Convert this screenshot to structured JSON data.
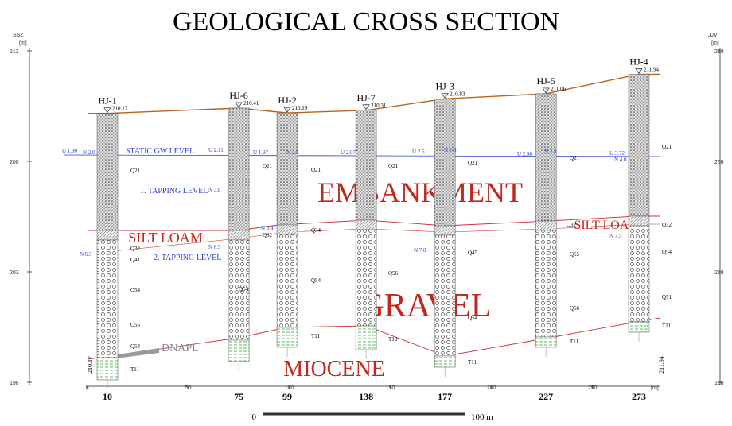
{
  "title": "GEOLOGICAL CROSS SECTION",
  "left_axis": {
    "name": "SSZ",
    "unit": "[m]",
    "ticks": [
      213,
      208,
      203,
      198
    ]
  },
  "right_axis": {
    "name": "JJV",
    "unit": "[m]",
    "ticks": [
      213,
      208,
      203,
      198
    ]
  },
  "boreholes": [
    {
      "name": "HJ-1",
      "elevation": 210.17,
      "distance": 10
    },
    {
      "name": "HJ-6",
      "elevation": 210.41,
      "distance": 75
    },
    {
      "name": "HJ-2",
      "elevation": 210.19,
      "distance": 99
    },
    {
      "name": "HJ-7",
      "elevation": 210.31,
      "distance": 138
    },
    {
      "name": "HJ-3",
      "elevation": 210.83,
      "distance": 177
    },
    {
      "name": "HJ-5",
      "elevation": 211.06,
      "distance": 227
    },
    {
      "name": "HJ-4",
      "elevation": 211.94,
      "distance": 273
    }
  ],
  "end_elevations": {
    "left": "210.17",
    "right": "211.94"
  },
  "x_axis": {
    "ticks": [
      0,
      50,
      100,
      150,
      200,
      250
    ],
    "unit": "[m]"
  },
  "layers": {
    "embankment": "EMBANKMENT",
    "silt_loam_left": "SILT LOAM",
    "silt_loam_right": "SILT LOAM",
    "gravel": "GRAVEL",
    "miocene": "MIOCENE",
    "dnapl": "DNAPL"
  },
  "water_levels": {
    "static": "STATIC GW LEVEL",
    "tapping_1": "1. TAPPING LEVEL",
    "tapping_2": "2. TAPPING LEVEL"
  },
  "gw_labels": [
    "U 1.90",
    "N 2.0",
    "U 2.11",
    "U 1.97",
    "N 2.0",
    "U 2.07",
    "U 2.61",
    "N 2.5",
    "U 2.90",
    "N 2.8",
    "U 3.72",
    "N 4.0",
    "N 3.8",
    "N 6.5",
    "N 6.5",
    "N 5.4",
    "N 7.0",
    "N 7.5"
  ],
  "layer_codes": [
    "Q21",
    "Q21",
    "Q21",
    "Q21",
    "Q21",
    "Q21",
    "Q21",
    "Q32",
    "Q41",
    "Q54",
    "Q55",
    "Q54",
    "T11",
    "Q54",
    "T11",
    "Q54",
    "Q56",
    "T13",
    "Q45",
    "Q54",
    "T11",
    "Q55",
    "Q56",
    "T11",
    "Q32",
    "Q54",
    "Q51",
    "T11",
    "Q32",
    "Q34",
    "Q32"
  ],
  "scale_bar": {
    "start": "0",
    "end": "100 m"
  }
}
